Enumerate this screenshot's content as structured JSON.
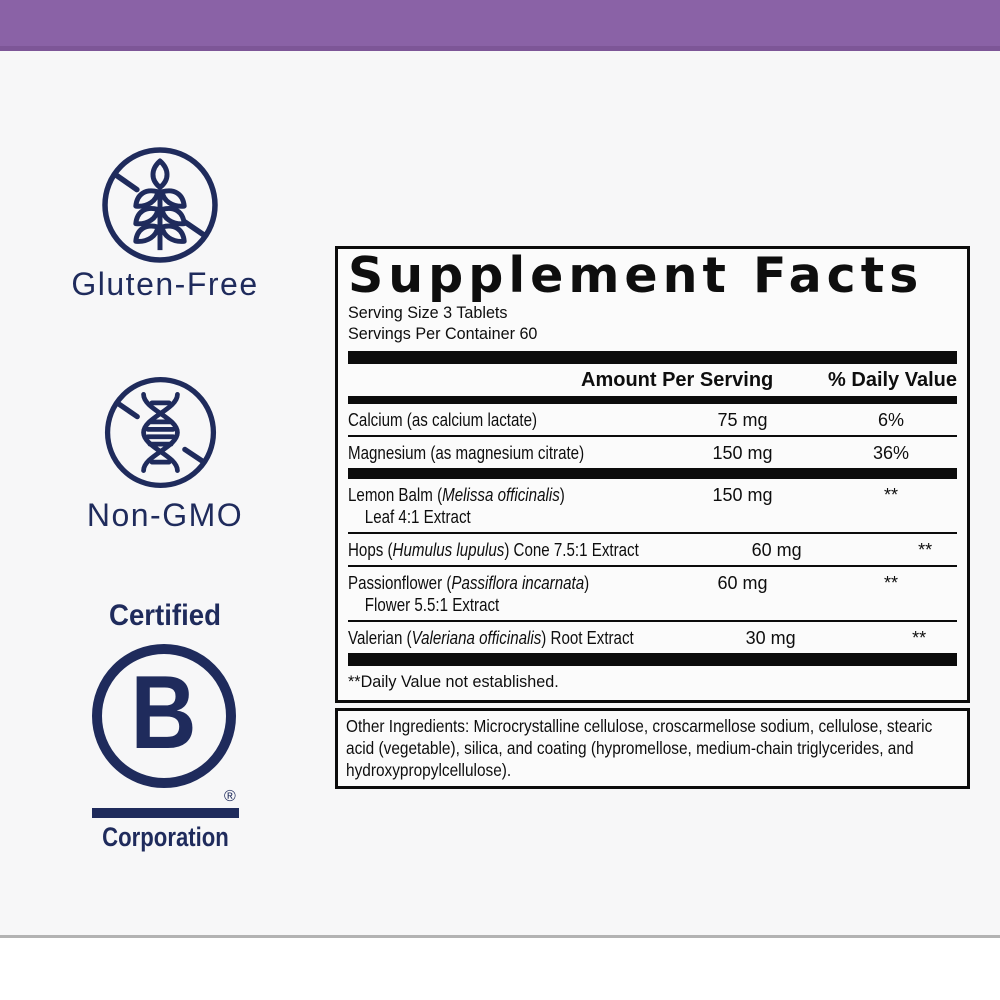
{
  "colors": {
    "navy": "#1f2b5c",
    "purple_bar": "#8a62a6",
    "purple_bar_edge": "#7d5697",
    "label_background": "#f7f7f8",
    "panel_border": "#0c0c0c",
    "bottom_divider": "#b3b3b3"
  },
  "badges": {
    "gluten_free": {
      "label": "Gluten-Free",
      "icon": "wheat-slash-icon"
    },
    "non_gmo": {
      "label": "Non-GMO",
      "icon": "dna-slash-icon"
    },
    "b_corp": {
      "certified": "Certified",
      "letter": "B",
      "registered": "®",
      "corporation": "Corporation"
    }
  },
  "supplement_facts": {
    "title": "Supplement Facts",
    "serving_size": "Serving Size 3 Tablets",
    "servings_per_container": "Servings Per Container 60",
    "columns": {
      "amount": "Amount Per Serving",
      "dv": "% Daily Value"
    },
    "rows": [
      {
        "pre": "Calcium (as calcium lactate)",
        "sci": "",
        "post": "",
        "line2": "",
        "amount": "75 mg",
        "dv": "6%",
        "after": "thin"
      },
      {
        "pre": "Magnesium (as magnesium citrate)",
        "sci": "",
        "post": "",
        "line2": "",
        "amount": "150 mg",
        "dv": "36%",
        "after": "bar-mid"
      },
      {
        "pre": "Lemon Balm (",
        "sci": "Melissa officinalis",
        "post": ")",
        "line2": "Leaf 4:1 Extract",
        "amount": "150 mg",
        "dv": "**",
        "after": "thin"
      },
      {
        "pre": "Hops (",
        "sci": "Humulus lupulus",
        "post": ") Cone 7.5:1 Extract",
        "line2": "",
        "amount": "60 mg",
        "dv": "**",
        "after": "thin"
      },
      {
        "pre": "Passionflower (",
        "sci": "Passiflora incarnata",
        "post": ")",
        "line2": "Flower 5.5:1 Extract",
        "amount": "60 mg",
        "dv": "**",
        "after": "thin"
      },
      {
        "pre": "Valerian (",
        "sci": "Valeriana officinalis",
        "post": ") Root Extract",
        "line2": "",
        "amount": "30 mg",
        "dv": "**",
        "after": "bar-big"
      }
    ],
    "footnote": "**Daily Value not established."
  },
  "other_ingredients": "Other Ingredients: Microcrystalline cellulose, croscarmellose sodium, cellulose, stearic acid (vegetable), silica, and coating (hypromellose, medium-chain triglycerides, and hydroxypropylcellulose)."
}
